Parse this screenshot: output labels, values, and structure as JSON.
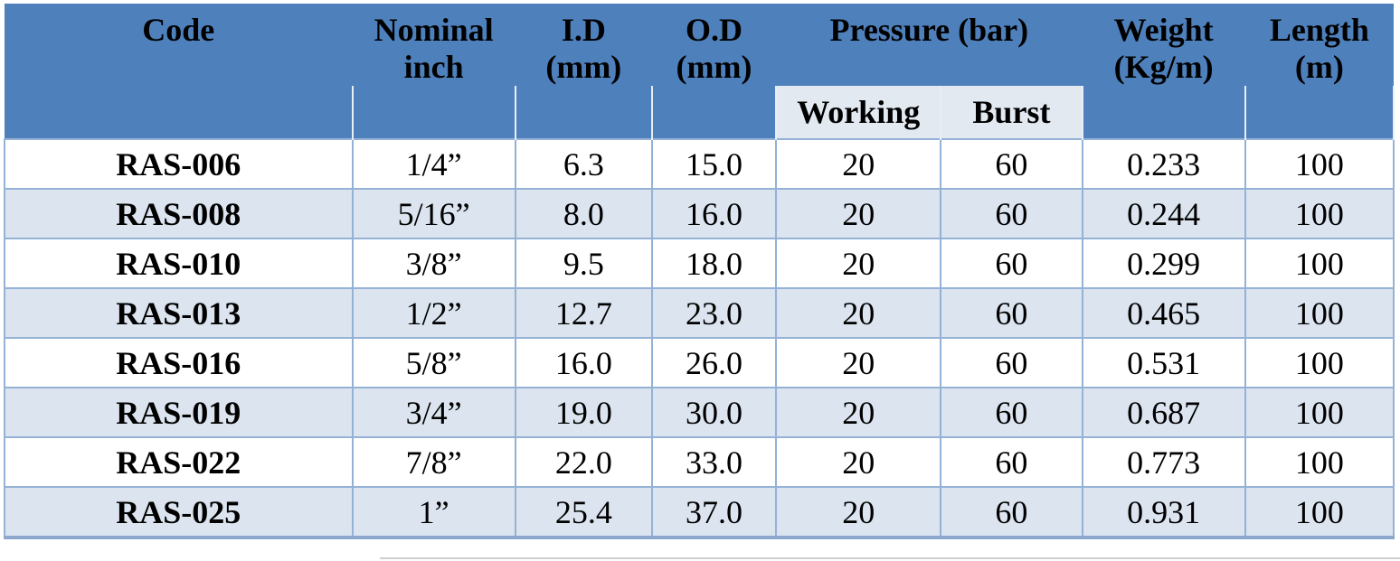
{
  "colors": {
    "header_bg": "#4e80bc",
    "subheader_cell_bg": "#e3e9f1",
    "row_alt_bg": "#dbe4ef",
    "grid_border": "#94b2d6",
    "bottom_border": "#8ca8cd",
    "header_inner_border": "#e9eef6",
    "text": "#000000"
  },
  "header": {
    "columns": [
      {
        "id": "code",
        "text": "Code"
      },
      {
        "id": "nominal-inch",
        "text": "Nominal\ninch"
      },
      {
        "id": "id-mm",
        "text": "I.D\n(mm)"
      },
      {
        "id": "od-mm",
        "text": "O.D\n(mm)"
      },
      {
        "id": "pressure-bar",
        "text": "Pressure (bar)",
        "colspan": 2
      },
      {
        "id": "weight-kg-m",
        "text": "Weight\n(Kg/m)"
      },
      {
        "id": "length-m",
        "text": "Length\n(m)"
      }
    ],
    "sub_cells": [
      {
        "id": "code-spacer"
      },
      {
        "id": "nominal-spacer"
      },
      {
        "id": "id-spacer"
      },
      {
        "id": "od-spacer"
      },
      {
        "id": "working",
        "label": "Working"
      },
      {
        "id": "burst",
        "label": "Burst"
      },
      {
        "id": "weight-spacer"
      },
      {
        "id": "length-spacer"
      }
    ]
  },
  "rows": [
    {
      "code": "RAS-006",
      "nominal_inch": "1/4”",
      "id_mm": "6.3",
      "od_mm": "15.0",
      "working_bar": "20",
      "burst_bar": "60",
      "weight_kg_m": "0.233",
      "length_m": "100"
    },
    {
      "code": "RAS-008",
      "nominal_inch": "5/16”",
      "id_mm": "8.0",
      "od_mm": "16.0",
      "working_bar": "20",
      "burst_bar": "60",
      "weight_kg_m": "0.244",
      "length_m": "100"
    },
    {
      "code": "RAS-010",
      "nominal_inch": "3/8”",
      "id_mm": "9.5",
      "od_mm": "18.0",
      "working_bar": "20",
      "burst_bar": "60",
      "weight_kg_m": "0.299",
      "length_m": "100"
    },
    {
      "code": "RAS-013",
      "nominal_inch": "1/2”",
      "id_mm": "12.7",
      "od_mm": "23.0",
      "working_bar": "20",
      "burst_bar": "60",
      "weight_kg_m": "0.465",
      "length_m": "100"
    },
    {
      "code": "RAS-016",
      "nominal_inch": "5/8”",
      "id_mm": "16.0",
      "od_mm": "26.0",
      "working_bar": "20",
      "burst_bar": "60",
      "weight_kg_m": "0.531",
      "length_m": "100"
    },
    {
      "code": "RAS-019",
      "nominal_inch": "3/4”",
      "id_mm": "19.0",
      "od_mm": "30.0",
      "working_bar": "20",
      "burst_bar": "60",
      "weight_kg_m": "0.687",
      "length_m": "100"
    },
    {
      "code": "RAS-022",
      "nominal_inch": "7/8”",
      "id_mm": "22.0",
      "od_mm": "33.0",
      "working_bar": "20",
      "burst_bar": "60",
      "weight_kg_m": "0.773",
      "length_m": "100"
    },
    {
      "code": "RAS-025",
      "nominal_inch": "1”",
      "id_mm": "25.4",
      "od_mm": "37.0",
      "working_bar": "20",
      "burst_bar": "60",
      "weight_kg_m": "0.931",
      "length_m": "100"
    }
  ]
}
